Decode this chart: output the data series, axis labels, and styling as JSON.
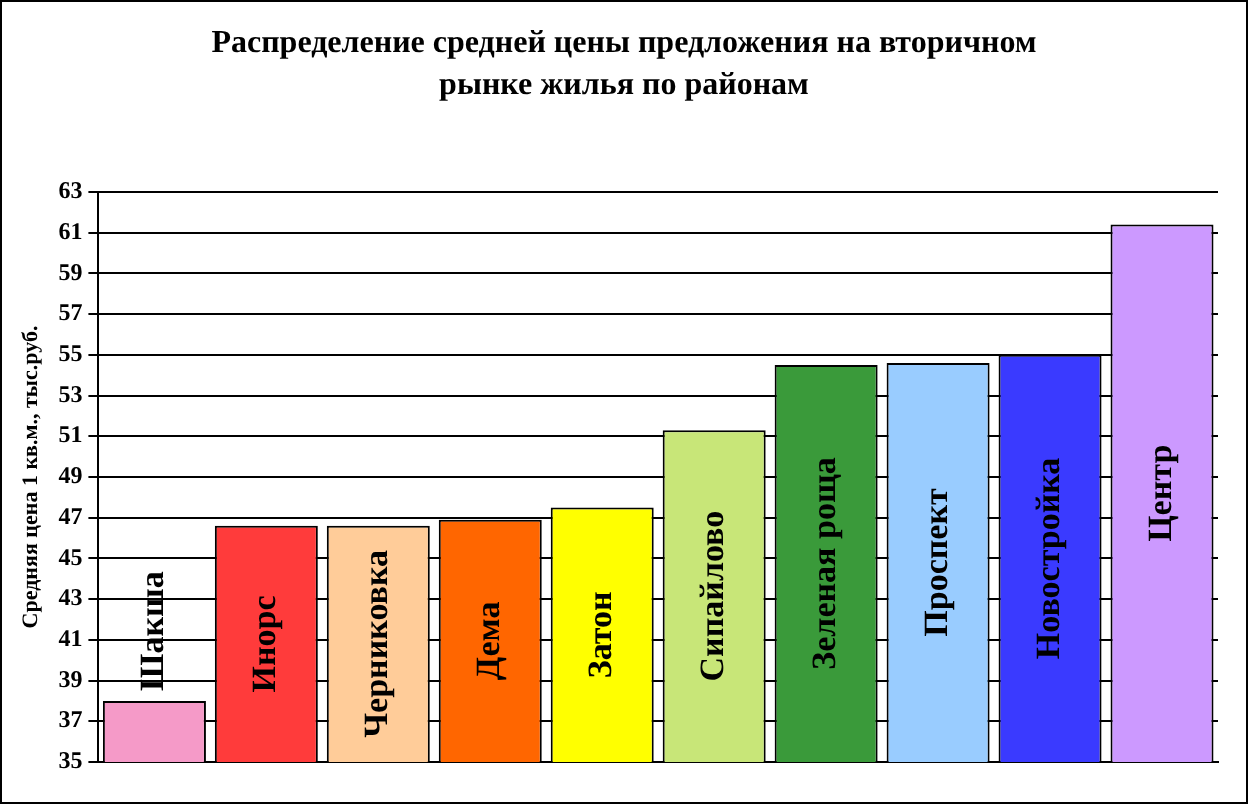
{
  "chart_data": {
    "type": "bar",
    "title": "Распределение средней цены предложения на вторичном рынке жилья по районам",
    "ylabel": "Средняя цена 1 кв.м., тыс.руб.",
    "categories": [
      "Шакша",
      "Инорс",
      "Черниковка",
      "Дема",
      "Затон",
      "Сипайлово",
      "Зеленая роща",
      "Проспект",
      "Новостройка",
      "Центр"
    ],
    "values": [
      38.0,
      46.6,
      46.6,
      46.9,
      47.5,
      51.3,
      54.5,
      54.6,
      55.0,
      61.4
    ],
    "colors": [
      "#f59ac8",
      "#ff3b3b",
      "#ffcc99",
      "#ff6600",
      "#ffff00",
      "#c8e678",
      "#3a9a3a",
      "#99ccff",
      "#3a3aff",
      "#cc99ff"
    ],
    "ylim": [
      35,
      63
    ],
    "yticks": [
      35,
      37,
      39,
      41,
      43,
      45,
      47,
      49,
      51,
      53,
      55,
      57,
      59,
      61,
      63
    ],
    "grid": "y",
    "tick_labels": "y"
  }
}
